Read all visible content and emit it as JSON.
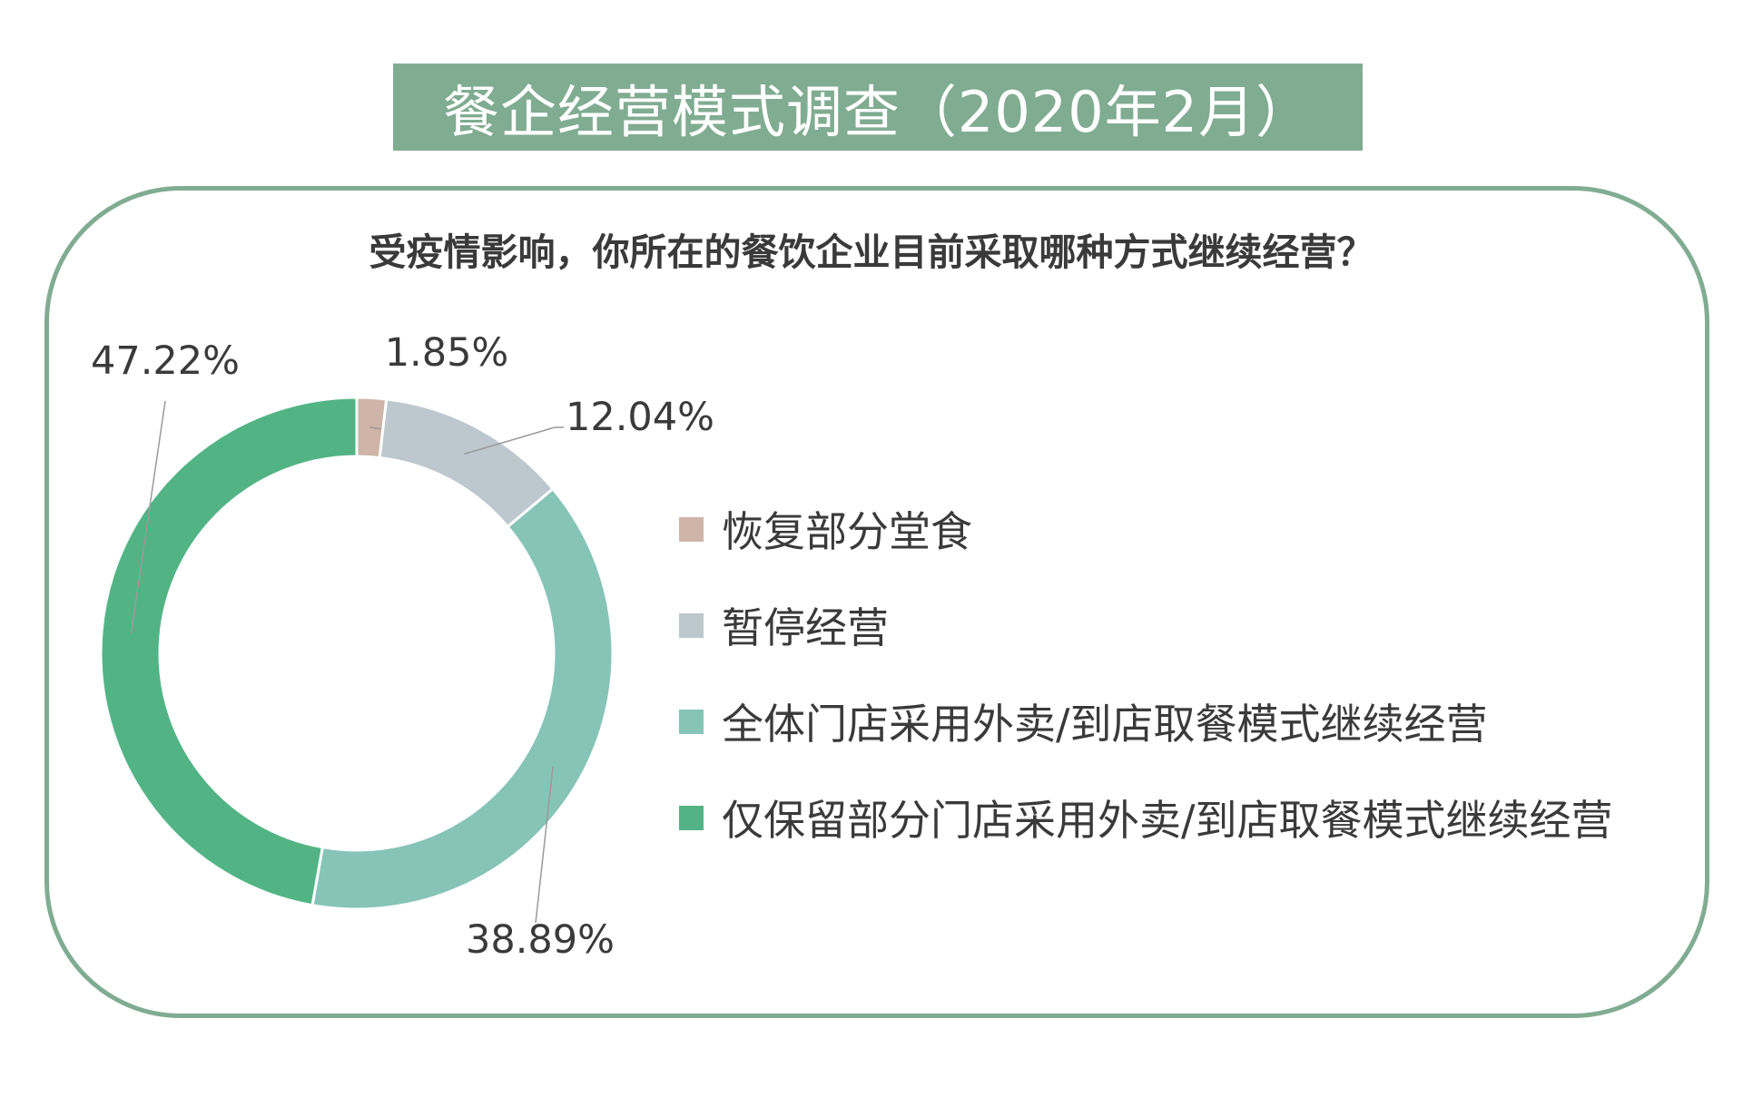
{
  "title": "餐企经营模式调查（2020年2月）",
  "question": "受疫情影响，你所在的餐饮企业目前采取哪种方式继续经营？",
  "chart_data": {
    "type": "pie",
    "variant": "donut",
    "legend_position": "right",
    "slices": [
      {
        "label": "恢复部分堂食",
        "value": 1.85,
        "value_label": "1.85%",
        "color": "#cfb4a8"
      },
      {
        "label": "暂停经营",
        "value": 12.04,
        "value_label": "12.04%",
        "color": "#bcc8cd"
      },
      {
        "label": "全体门店采用外卖/到店取餐模式继续经营",
        "value": 38.89,
        "value_label": "38.89%",
        "color": "#87c4b8"
      },
      {
        "label": "仅保留部分门店采用外卖/到店取餐模式继续经营",
        "value": 47.22,
        "value_label": "47.22%",
        "color": "#52b485"
      }
    ]
  }
}
